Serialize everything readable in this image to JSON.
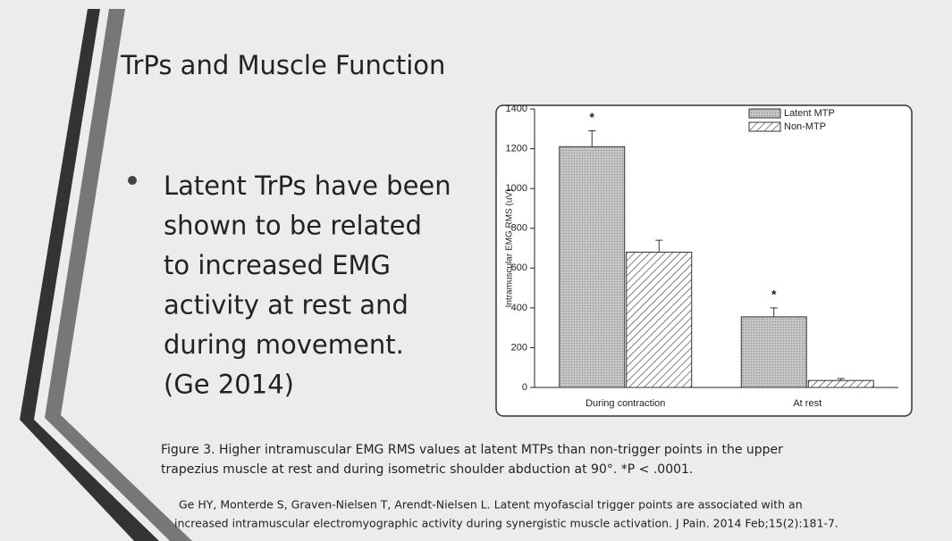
{
  "slide": {
    "title": "TrPs and Muscle Function",
    "bullet_lines": [
      "Latent TrPs have been",
      "shown to be related",
      "to increased EMG",
      "activity at rest and",
      "during movement.",
      "(Ge 2014)"
    ],
    "caption_lines": [
      "Figure 3. Higher intramuscular EMG RMS values at latent MTPs than non-trigger points in the upper",
      "trapezius muscle at rest and during isometric shoulder abduction at 90°. *P < .0001."
    ],
    "citation_lines": [
      "Ge HY, Monterde S, Graven-Nielsen T, Arendt-Nielsen L. Latent myofascial trigger points are associated with an",
      "increased intramuscular electromyographic activity during synergistic muscle activation. J Pain. 2014 Feb;15(2):181-7."
    ]
  },
  "chart_data": {
    "type": "bar",
    "y_label": "Intramuscular EMG RMS (uV)",
    "categories": [
      "During contraction",
      "At rest"
    ],
    "series": [
      {
        "name": "Latent MTP",
        "color": "#c4c4c4",
        "values": [
          1210,
          355
        ],
        "errors": [
          80,
          45
        ],
        "markers": [
          "*",
          "*"
        ]
      },
      {
        "name": "Non-MTP",
        "color": "#ffffff",
        "hatch": true,
        "values": [
          680,
          35
        ],
        "errors": [
          60,
          10
        ]
      }
    ],
    "ylim": [
      0,
      1400
    ],
    "yticks": [
      0,
      200,
      400,
      600,
      800,
      1000,
      1200,
      1400
    ],
    "legend": "top-right"
  }
}
